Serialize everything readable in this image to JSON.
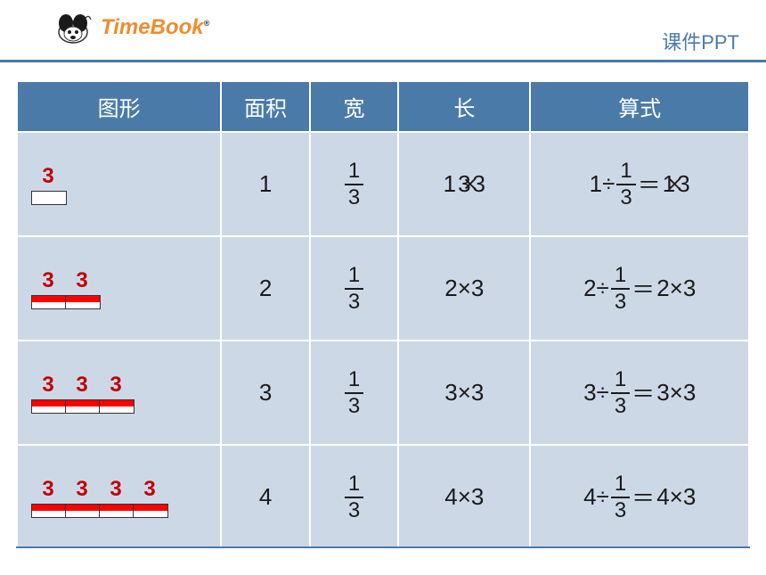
{
  "header": {
    "brand_time": "Time",
    "brand_book": "Book",
    "trademark": "®",
    "ppt_label": "课件PPT"
  },
  "colors": {
    "header_blue": "#4a7ba8",
    "cell_bg": "#cdd8e7",
    "red_label": "#c00000",
    "brand_orange": "#f08c2e",
    "text": "#1a1a1a"
  },
  "table": {
    "headers": [
      "图形",
      "面积",
      "宽",
      "长",
      "算式"
    ],
    "col_widths": [
      "28%",
      "12%",
      "12%",
      "18%",
      "30%"
    ],
    "frac": {
      "num": "1",
      "den": "3"
    },
    "rows": [
      {
        "shape": {
          "segments": 1,
          "labels": [
            "3"
          ],
          "filled": [
            false
          ]
        },
        "area": "1",
        "length": {
          "a_pre": "1",
          "a_overlap": "3",
          "b_overlap": "×",
          "post": "3"
        },
        "formula": {
          "left_n": "1",
          "right_n_a": "1",
          "right_n_b": "×",
          "right_rest": "3"
        }
      },
      {
        "shape": {
          "segments": 2,
          "labels": [
            "3",
            "3"
          ],
          "filled": [
            true,
            true
          ]
        },
        "area": "2",
        "length": {
          "txt": "2×3"
        },
        "formula": {
          "left_n": "2",
          "right_txt": "2×3"
        }
      },
      {
        "shape": {
          "segments": 3,
          "labels": [
            "3",
            "3",
            "3"
          ],
          "filled": [
            true,
            true,
            true
          ]
        },
        "area": "3",
        "length": {
          "txt": "3×3"
        },
        "formula": {
          "left_n": "3",
          "right_txt": "3×3"
        }
      },
      {
        "shape": {
          "segments": 4,
          "labels": [
            "3",
            "3",
            "3",
            "3"
          ],
          "filled": [
            true,
            true,
            true,
            true
          ]
        },
        "area": "4",
        "length": {
          "txt": "4×3"
        },
        "formula": {
          "left_n": "4",
          "right_txt": "4×3"
        }
      }
    ]
  }
}
